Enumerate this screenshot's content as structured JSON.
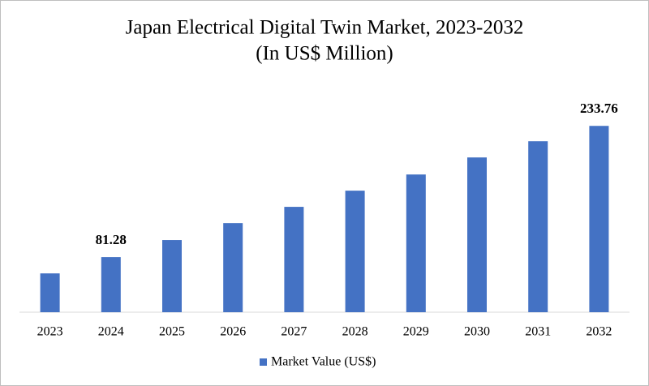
{
  "chart_data": {
    "type": "bar",
    "title": "Japan Electrical Digital Twin Market, 2023-2032",
    "subtitle": "(In US$ Million)",
    "categories": [
      "2023",
      "2024",
      "2025",
      "2026",
      "2027",
      "2028",
      "2029",
      "2030",
      "2031",
      "2032"
    ],
    "series": [
      {
        "name": "Market Value (US$)",
        "color": "#4472c4",
        "values": [
          62.4,
          81.28,
          101.1,
          120.8,
          139.7,
          158.5,
          177.3,
          197.1,
          215.9,
          233.76
        ],
        "value_labels": [
          null,
          "81.28",
          null,
          null,
          null,
          null,
          null,
          null,
          null,
          "233.76"
        ]
      }
    ],
    "ylim": [
      17.3,
      250
    ],
    "legend": "bottom"
  }
}
